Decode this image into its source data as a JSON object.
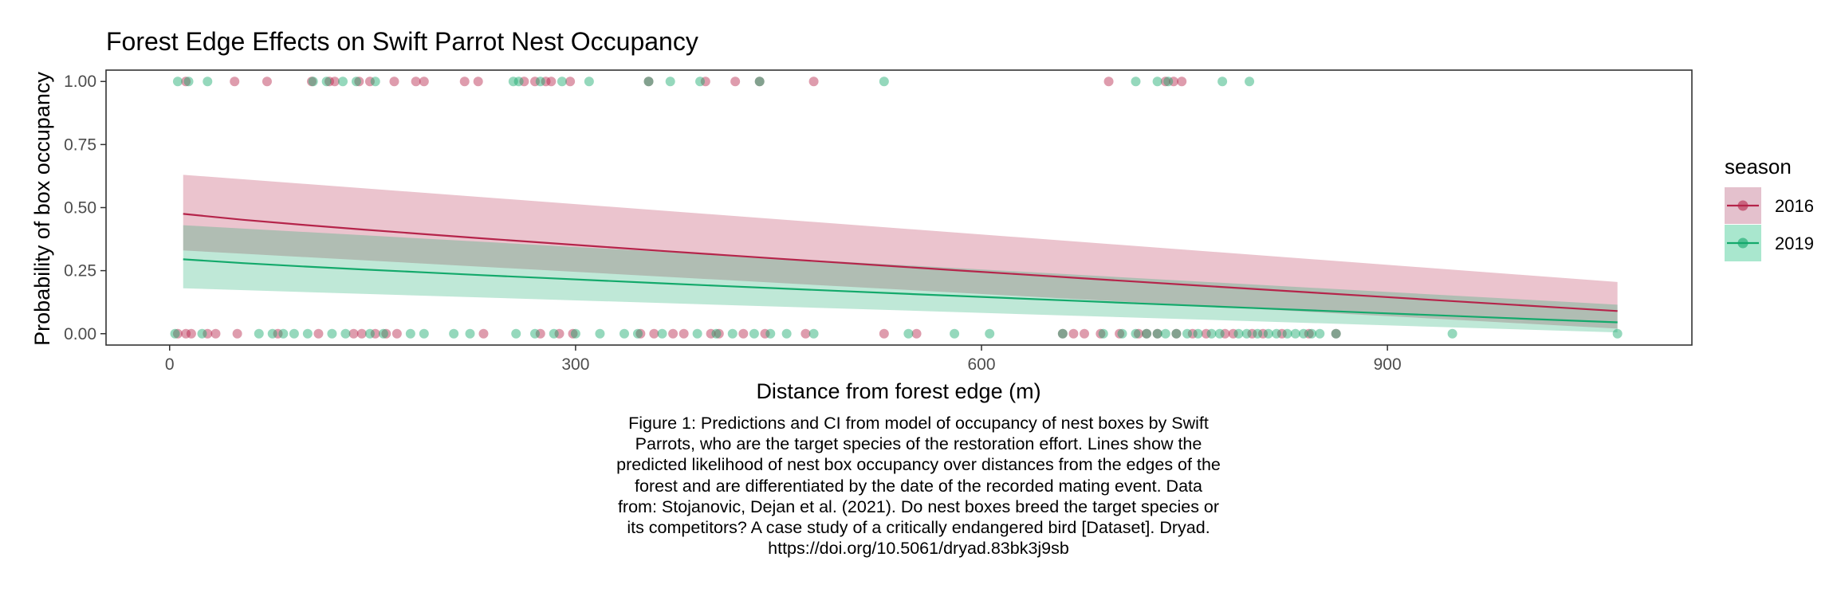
{
  "chart_data": {
    "type": "scatter",
    "title": "Forest Edge Effects on Swift Parrot Nest Occupancy",
    "xlabel": "Distance from forest edge (m)",
    "ylabel": "Probability of box occupancy",
    "xlim": [
      -47,
      1125
    ],
    "ylim": [
      -0.045,
      1.045
    ],
    "x_ticks": [
      0,
      300,
      600,
      900
    ],
    "y_ticks": [
      0.0,
      0.25,
      0.5,
      0.75,
      1.0
    ],
    "x_tick_labels": [
      "0",
      "300",
      "600",
      "900"
    ],
    "y_tick_labels": [
      "0.00",
      "0.25",
      "0.50",
      "0.75",
      "1.00"
    ],
    "grid": false,
    "legend": {
      "title": "season",
      "position": "right",
      "entries": [
        {
          "label": "2016",
          "color": "#B5244A",
          "fill": "#D9A6B8"
        },
        {
          "label": "2019",
          "color": "#13A96B",
          "fill": "#84DDB9"
        }
      ]
    },
    "series": [
      {
        "name": "2016",
        "color": "#B5244A",
        "x": [
          10,
          1070
        ],
        "fit": [
          0.475,
          0.09
        ],
        "ci_lower": [
          0.33,
          0.02
        ],
        "ci_upper": [
          0.63,
          0.205
        ],
        "points_occupied": [
          12,
          48,
          72,
          105,
          118,
          122,
          140,
          148,
          166,
          182,
          188,
          218,
          228,
          262,
          270,
          278,
          282,
          296,
          354,
          396,
          418,
          436,
          476,
          694,
          736,
          742,
          748
        ],
        "points_unoccupied": [
          6,
          12,
          16,
          28,
          34,
          50,
          80,
          110,
          136,
          142,
          152,
          160,
          168,
          232,
          274,
          288,
          298,
          348,
          358,
          372,
          380,
          400,
          406,
          424,
          440,
          470,
          528,
          552,
          660,
          668,
          676,
          688,
          702,
          716,
          722,
          730,
          744,
          756,
          766,
          780,
          786,
          800,
          808,
          822,
          842,
          862
        ]
      },
      {
        "name": "2019",
        "color": "#13A96B",
        "x": [
          10,
          1070
        ],
        "fit": [
          0.295,
          0.045
        ],
        "ci_lower": [
          0.18,
          0.005
        ],
        "ci_upper": [
          0.43,
          0.115
        ],
        "points_occupied": [
          6,
          14,
          28,
          106,
          116,
          128,
          138,
          152,
          254,
          258,
          274,
          290,
          310,
          354,
          370,
          392,
          436,
          528,
          714,
          730,
          738,
          778,
          798
        ],
        "points_unoccupied": [
          4,
          24,
          66,
          76,
          84,
          92,
          102,
          120,
          130,
          148,
          158,
          178,
          188,
          210,
          222,
          256,
          270,
          284,
          300,
          318,
          336,
          346,
          364,
          390,
          404,
          416,
          432,
          444,
          456,
          476,
          546,
          580,
          606,
          660,
          690,
          704,
          714,
          722,
          730,
          736,
          744,
          752,
          760,
          770,
          776,
          790,
          796,
          804,
          812,
          818,
          826,
          832,
          838,
          844,
          850,
          862,
          948,
          1070
        ]
      }
    ]
  },
  "caption": {
    "lines": [
      "Figure 1: Predictions and CI from model of occupancy of nest boxes by Swift",
      "Parrots, who are the target species of the restoration effort. Lines show the",
      "predicted likelihood of nest box occupancy over distances from the edges of the",
      "forest and are differentiated by the date of the recorded mating event. Data",
      "from: Stojanovic, Dejan et al. (2021). Do nest boxes breed the target species or",
      "its competitors? A case study of a critically endangered bird [Dataset]. Dryad.",
      "https://doi.org/10.5061/dryad.83bk3j9sb"
    ]
  }
}
